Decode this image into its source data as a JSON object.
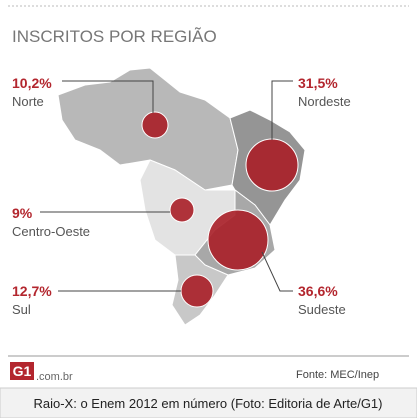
{
  "title": "INSCRITOS POR REGIÃO",
  "regions": [
    {
      "share": "10,2%",
      "name": "Norte"
    },
    {
      "share": "31,5%",
      "name": "Nordeste"
    },
    {
      "share": "9%",
      "name": "Centro-Oeste"
    },
    {
      "share": "12,7%",
      "name": "Sul"
    },
    {
      "share": "36,6%",
      "name": "Sudeste"
    }
  ],
  "logo": {
    "mark": "G1",
    "domain": ".com.br"
  },
  "source": "Fonte: MEC/Inep",
  "caption": "Raio-X: o Enem 2012 em número (Foto: Editoria de Arte/G1)"
}
